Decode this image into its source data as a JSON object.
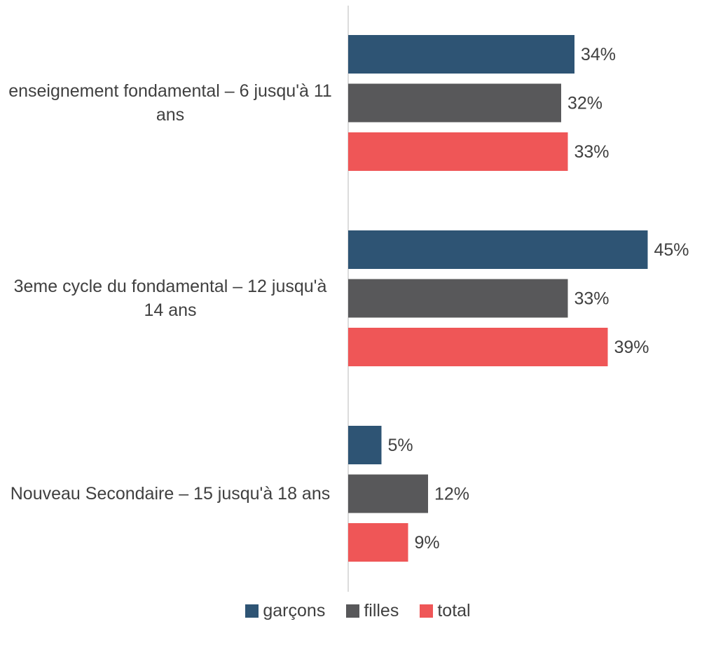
{
  "chart_data": {
    "type": "bar",
    "orientation": "horizontal",
    "categories": [
      "enseignement fondamental – 6 jusqu'à 11 ans",
      "3eme cycle du fondamental – 12 jusqu'à 14 ans",
      "Nouveau Secondaire – 15 jusqu'à 18 ans"
    ],
    "series": [
      {
        "name": "garçons",
        "color": "#2e5474",
        "values": [
          34,
          45,
          5
        ],
        "value_labels": [
          "34%",
          "45%",
          "5%"
        ]
      },
      {
        "name": "filles",
        "color": "#58585a",
        "values": [
          32,
          33,
          12
        ],
        "value_labels": [
          "32%",
          "33%",
          "12%"
        ]
      },
      {
        "name": "total",
        "color": "#ef5657",
        "values": [
          33,
          39,
          9
        ],
        "value_labels": [
          "33%",
          "39%",
          "9%"
        ]
      }
    ],
    "xlim": [
      0,
      50
    ],
    "legend": "bottom"
  }
}
